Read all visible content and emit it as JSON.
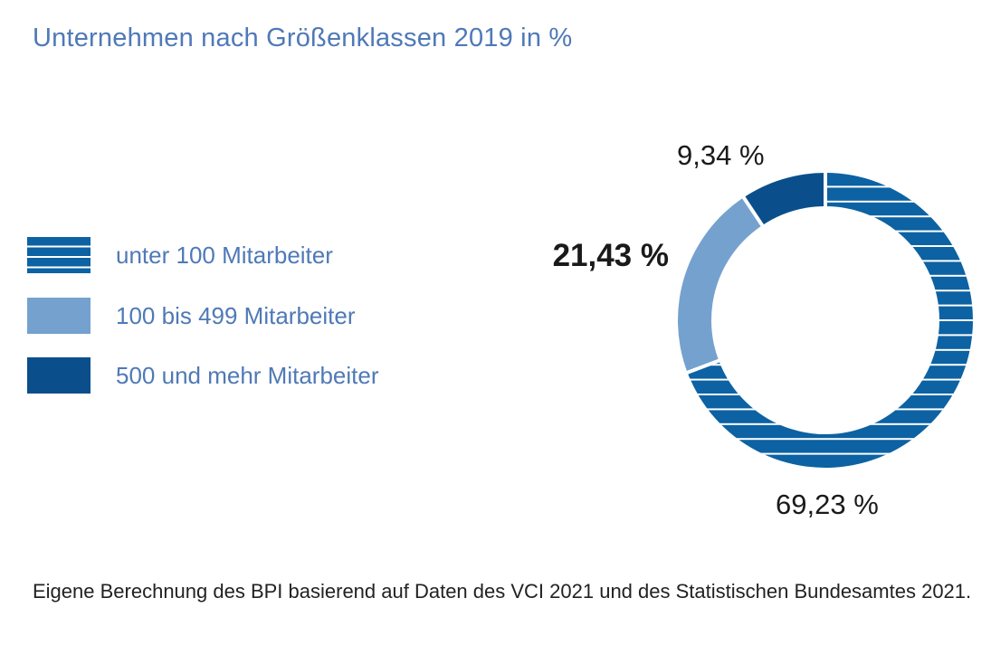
{
  "title": "Unternehmen nach Größenklassen 2019 in %",
  "chart_data": {
    "type": "pie",
    "variant": "donut",
    "categories": [
      "unter 100 Mitarbeiter",
      "100 bis 499 Mitarbeiter",
      "500 und mehr Mitarbeiter"
    ],
    "values": [
      69.23,
      21.43,
      9.34
    ],
    "value_labels": [
      "69,23 %",
      "21,43 %",
      "9,34 %"
    ],
    "colors": [
      "#0c62a2",
      "#75a1cf",
      "#0a4f8c"
    ],
    "patterns": [
      "horizontal-stripes",
      "solid",
      "solid"
    ],
    "legend_position": "left"
  },
  "footnote": "Eigene Berechnung des BPI basierend auf Daten des VCI 2021 und des Statistischen Bundesamtes 2021."
}
